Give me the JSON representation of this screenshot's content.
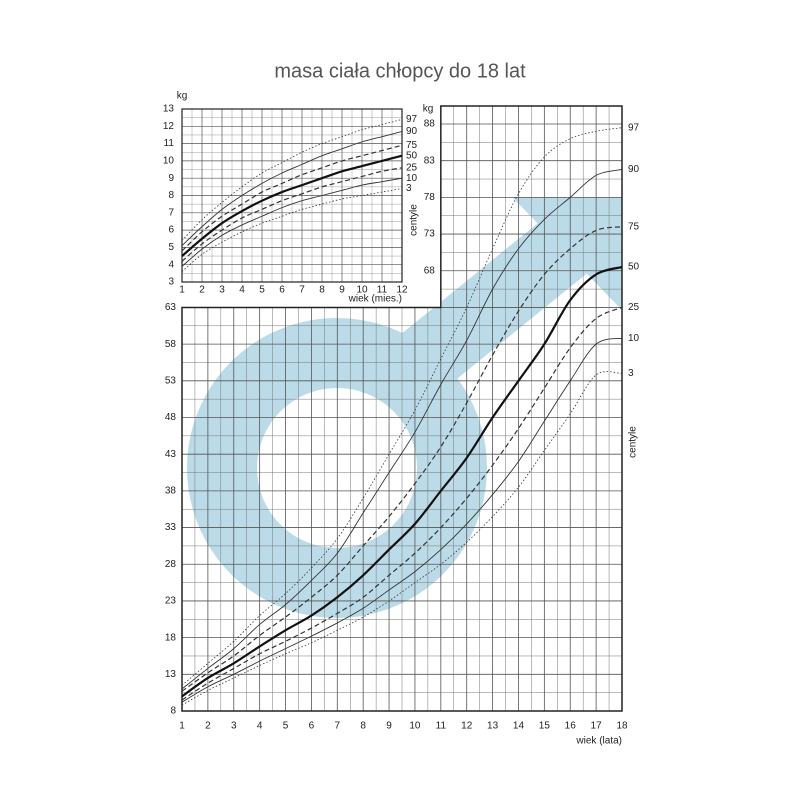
{
  "chart_data": [
    {
      "type": "line",
      "title": "masa ciała chłopcy do 18 lat",
      "x_label": "wiek (lata)",
      "y_label": "kg",
      "centile_label": "centyle",
      "x": [
        1,
        2,
        3,
        4,
        5,
        6,
        7,
        8,
        9,
        10,
        11,
        12,
        13,
        14,
        15,
        16,
        17,
        18
      ],
      "xlim": [
        1,
        18
      ],
      "xticks": [
        1,
        2,
        3,
        4,
        5,
        6,
        7,
        8,
        9,
        10,
        11,
        12,
        13,
        14,
        15,
        16,
        17,
        18
      ],
      "ylim": [
        8,
        88
      ],
      "yticks": [
        8,
        13,
        18,
        23,
        28,
        33,
        38,
        43,
        48,
        53,
        58,
        63
      ],
      "upper_xlim": [
        11,
        18
      ],
      "upper_yticks": [
        68,
        73,
        78,
        83,
        88
      ],
      "grid": true,
      "series": [
        {
          "name": "97",
          "color": "#333333",
          "line_style": "dotted",
          "values": [
            11.5,
            14.5,
            17.5,
            21,
            24,
            27.5,
            31.5,
            37,
            43,
            49,
            56,
            63,
            71,
            78.5,
            83.5,
            86,
            87,
            87.5
          ]
        },
        {
          "name": "90",
          "color": "#333333",
          "line_style": "solid",
          "values": [
            11,
            13.8,
            16.5,
            19.8,
            22.5,
            25.8,
            29.5,
            35,
            40.5,
            46,
            52.5,
            58.5,
            65.5,
            71,
            75,
            78,
            81,
            81.8
          ]
        },
        {
          "name": "75",
          "color": "#333333",
          "line_style": "dashed",
          "values": [
            10.7,
            13.2,
            15.5,
            18.3,
            20.8,
            23.5,
            26.5,
            30.5,
            34.5,
            39,
            44,
            50,
            56.5,
            62.5,
            67.5,
            71,
            73.5,
            74
          ]
        },
        {
          "name": "50",
          "color": "#111111",
          "line_style": "bold",
          "values": [
            10,
            12.5,
            14.5,
            16.8,
            19,
            21,
            23.5,
            26.5,
            30,
            33.5,
            38,
            42.5,
            48,
            53,
            58,
            64,
            67.5,
            68.5
          ]
        },
        {
          "name": "25",
          "color": "#333333",
          "line_style": "dashed",
          "values": [
            9.5,
            11.8,
            13.8,
            15.8,
            17.5,
            19.3,
            21.3,
            23.5,
            26.5,
            29.5,
            33,
            37,
            41.5,
            46.5,
            52,
            57.5,
            61.5,
            63
          ]
        },
        {
          "name": "10",
          "color": "#333333",
          "line_style": "solid",
          "values": [
            9.2,
            11.3,
            13,
            14.8,
            16.5,
            18.2,
            20,
            22,
            24.5,
            27,
            30,
            33.5,
            37.5,
            42,
            47.5,
            53,
            58,
            58.8
          ]
        },
        {
          "name": "3",
          "color": "#333333",
          "line_style": "dotted",
          "values": [
            8.8,
            10.8,
            12.5,
            14.2,
            15.8,
            17.3,
            19,
            20.8,
            23,
            25.5,
            28,
            31,
            34.5,
            38.5,
            43.5,
            48.5,
            53.8,
            54
          ]
        }
      ]
    },
    {
      "type": "line",
      "x_label": "wiek (mies.)",
      "y_label": "kg",
      "x": [
        1,
        2,
        3,
        4,
        5,
        6,
        7,
        8,
        9,
        10,
        11,
        12
      ],
      "xlim": [
        1,
        12
      ],
      "xticks": [
        1,
        2,
        3,
        4,
        5,
        6,
        7,
        8,
        9,
        10,
        11,
        12
      ],
      "ylim": [
        3,
        13
      ],
      "yticks": [
        3,
        4,
        5,
        6,
        7,
        8,
        9,
        10,
        11,
        12,
        13
      ],
      "grid": true,
      "series": [
        {
          "name": "97",
          "color": "#333333",
          "line_style": "dotted",
          "values": [
            5.4,
            6.6,
            7.6,
            8.5,
            9.3,
            9.9,
            10.5,
            11,
            11.4,
            11.8,
            12.1,
            12.4
          ]
        },
        {
          "name": "90",
          "color": "#333333",
          "line_style": "solid",
          "values": [
            5.1,
            6.2,
            7.2,
            8,
            8.7,
            9.3,
            9.8,
            10.3,
            10.7,
            11.1,
            11.4,
            11.7
          ]
        },
        {
          "name": "75",
          "color": "#333333",
          "line_style": "dashed",
          "values": [
            4.8,
            5.9,
            6.8,
            7.5,
            8.2,
            8.7,
            9.2,
            9.6,
            10,
            10.3,
            10.6,
            10.9
          ]
        },
        {
          "name": "50",
          "color": "#111111",
          "line_style": "bold",
          "values": [
            4.5,
            5.5,
            6.4,
            7.1,
            7.7,
            8.2,
            8.6,
            9,
            9.4,
            9.7,
            10,
            10.3
          ]
        },
        {
          "name": "25",
          "color": "#333333",
          "line_style": "dashed",
          "values": [
            4.2,
            5.2,
            6,
            6.7,
            7.2,
            7.7,
            8.1,
            8.5,
            8.8,
            9.1,
            9.4,
            9.6
          ]
        },
        {
          "name": "10",
          "color": "#333333",
          "line_style": "solid",
          "values": [
            3.9,
            4.9,
            5.7,
            6.3,
            6.8,
            7.3,
            7.7,
            8,
            8.3,
            8.6,
            8.8,
            9
          ]
        },
        {
          "name": "3",
          "color": "#333333",
          "line_style": "dotted",
          "values": [
            3.6,
            4.6,
            5.3,
            5.9,
            6.4,
            6.8,
            7.2,
            7.5,
            7.8,
            8,
            8.2,
            8.4
          ]
        }
      ]
    }
  ]
}
